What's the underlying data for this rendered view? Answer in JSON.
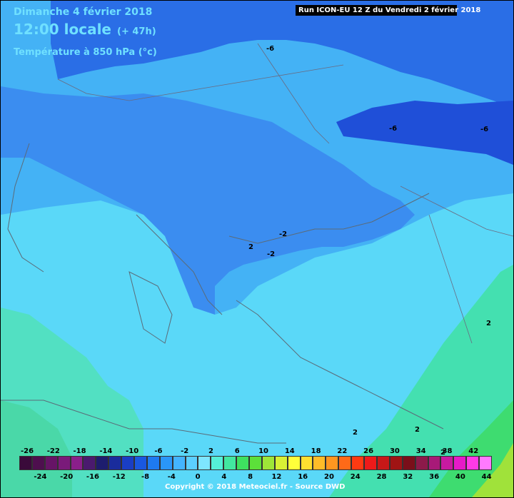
{
  "header": {
    "date": "Dimanche 4 février 2018",
    "time": "12:00 locale",
    "offset": "(+ 47h)",
    "parameter": "Température à 850 hPa (°c)",
    "run": "Run ICON-EU 12 Z du Vendredi 2 février 2018"
  },
  "isolines": {
    "labels": [
      "-6",
      "-6",
      "-6",
      "-2",
      "-2",
      "2",
      "2",
      "2",
      "2",
      "2"
    ]
  },
  "legend": {
    "top_ticks": [
      "-26",
      "-22",
      "-18",
      "-14",
      "-10",
      "-6",
      "-2",
      "2",
      "6",
      "10",
      "14",
      "18",
      "22",
      "26",
      "30",
      "34",
      "38",
      "42"
    ],
    "bottom_ticks": [
      "-24",
      "-20",
      "-16",
      "-12",
      "-8",
      "-4",
      "0",
      "4",
      "8",
      "12",
      "16",
      "20",
      "24",
      "28",
      "32",
      "36",
      "40",
      "44"
    ],
    "colors": [
      "#3a0a3a",
      "#4e0f4e",
      "#661466",
      "#7a1a7a",
      "#8a1f8a",
      "#4a1a6e",
      "#1d1d6e",
      "#1a2c9c",
      "#1a3ec4",
      "#1a58e0",
      "#1e7af0",
      "#2a96f8",
      "#44b4ff",
      "#5ccfff",
      "#7ee6ff",
      "#55f0d8",
      "#42e8a0",
      "#3ee060",
      "#5ce03a",
      "#9ee638",
      "#d8f035",
      "#ffff3a",
      "#ffe030",
      "#ffbc28",
      "#ff9620",
      "#ff6a18",
      "#ff3a12",
      "#ee1a1a",
      "#c81818",
      "#a01414",
      "#7a0f1a",
      "#8c1a4a",
      "#a81a78",
      "#c81aa0",
      "#e61ac8",
      "#ff3ae6",
      "#ff7aff"
    ],
    "copyright": "Copyright © 2018 Meteociel.fr - Source DWD"
  }
}
